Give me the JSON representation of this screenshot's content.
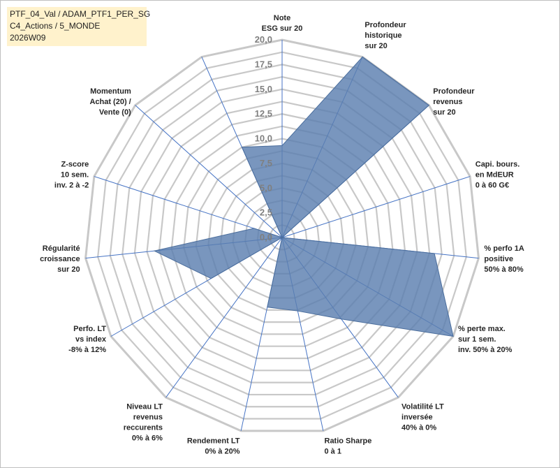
{
  "header": {
    "line1": "PTF_04_Val / ADAM_PTF1_PER_SG",
    "line2": "C4_Actions / 5_MONDE",
    "line3": "2026W09"
  },
  "chart_data": {
    "type": "radar",
    "rmin": 0,
    "rmax": 20,
    "ticks": [
      "0,0",
      "2,5",
      "5,0",
      "7,5",
      "10,0",
      "12,5",
      "15,0",
      "17,5",
      "20,0"
    ],
    "tick_values": [
      0,
      2.5,
      5,
      7.5,
      10,
      12.5,
      15,
      17.5,
      20
    ],
    "grid": true,
    "colors": {
      "fill": "#5b7fb0",
      "stroke": "#4a6d9c",
      "grid": "#c8c8c8",
      "spoke": "#4472c4"
    },
    "axes": [
      {
        "label": [
          "Note",
          "ESG sur 20"
        ],
        "value": 9.3
      },
      {
        "label": [
          "Profondeur",
          "historique",
          "sur 20"
        ],
        "value": 20.0
      },
      {
        "label": [
          "Profondeur",
          "revenus",
          "sur 20"
        ],
        "value": 20.0
      },
      {
        "label": [
          "Capi. bours.",
          "en MdEUR",
          "0 à 60 G€"
        ],
        "value": 0.0
      },
      {
        "label": [
          "% perfo 1A",
          "positive",
          "50% à 80%"
        ],
        "value": 15.5
      },
      {
        "label": [
          "% perte max.",
          "sur 1 sem.",
          "inv. 50% à 20%"
        ],
        "value": 20.0
      },
      {
        "label": [
          "Volatilité LT",
          "inversée",
          "40% à 0%"
        ],
        "value": 10.2
      },
      {
        "label": [
          "Ratio Sharpe",
          "0 à 1"
        ],
        "value": 7.6
      },
      {
        "label": [
          "Rendement LT",
          "0% à 20%"
        ],
        "value": 7.2
      },
      {
        "label": [
          "Niveau LT",
          "revenus",
          "reccurents",
          "0% à 6%"
        ],
        "value": 0.0
      },
      {
        "label": [
          "Perfo. LT",
          "vs index",
          "-8% à 12%"
        ],
        "value": 8.3
      },
      {
        "label": [
          "Régularité",
          "croissance",
          "sur 20"
        ],
        "value": 13.0
      },
      {
        "label": [
          "Z-score",
          "10 sem.",
          "inv. 2 à -2"
        ],
        "value": 3.0
      },
      {
        "label": [
          "Momentum",
          "Achat (20) /",
          "Vente (0)"
        ],
        "value": 0.0
      },
      {
        "label": [
          "",
          "",
          ""
        ],
        "value": 10.0
      }
    ]
  }
}
